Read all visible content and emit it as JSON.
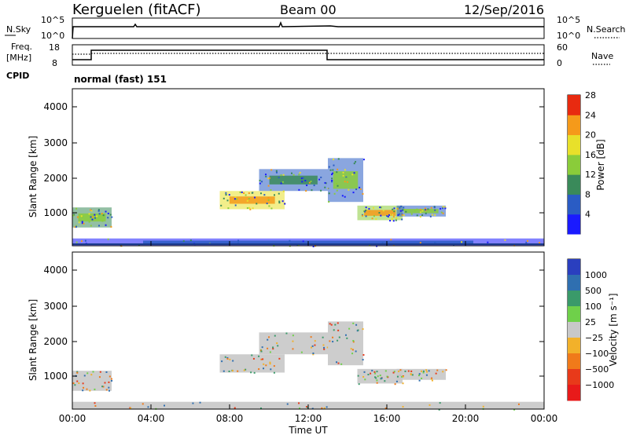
{
  "header": {
    "station": "Kerguelen (fitACF)",
    "beam": "Beam 00",
    "date": "12/Sep/2016"
  },
  "top_panels": {
    "nsky_label": "N.Sky",
    "nsky_ticks": [
      "10^5",
      "10^0"
    ],
    "nsearch_label": "N.Search",
    "nsearch_ticks": [
      "10^5",
      "10^0"
    ],
    "freq_label": "Freq.",
    "freq_unit": "[MHz]",
    "freq_ticks": [
      "18",
      "8"
    ],
    "nave_label": "Nave",
    "nave_ticks": [
      "60",
      "0"
    ],
    "cpid_label": "CPID",
    "cpid_value": "normal (fast) 151"
  },
  "chart_data": [
    {
      "type": "heatmap",
      "panel": "power",
      "ylabel": "Slant Range [km]",
      "yticks": [
        "1000",
        "2000",
        "3000",
        "4000"
      ],
      "ylim": [
        200,
        4500
      ],
      "xlim": [
        "00:00",
        "24:00"
      ],
      "colorbar_label": "Power [dB]",
      "colorbar_ticks": [
        "4",
        "8",
        "12",
        "16",
        "20",
        "24",
        "28"
      ],
      "colors": [
        "#1a1aff",
        "#2a5cc4",
        "#3a8a5a",
        "#8acc3a",
        "#e8e02a",
        "#f59a1a",
        "#e82a10"
      ],
      "regions": [
        {
          "t0": 0.0,
          "t1": 2.0,
          "r0": 700,
          "r1": 1250,
          "level": 16
        },
        {
          "t0": 7.5,
          "t1": 10.8,
          "r0": 1200,
          "r1": 1700,
          "level": 24
        },
        {
          "t0": 9.5,
          "t1": 13.0,
          "r0": 1700,
          "r1": 2300,
          "level": 12
        },
        {
          "t0": 13.0,
          "t1": 14.8,
          "r0": 1400,
          "r1": 2600,
          "level": 14
        },
        {
          "t0": 14.5,
          "t1": 16.8,
          "r0": 900,
          "r1": 1300,
          "level": 22
        },
        {
          "t0": 16.5,
          "t1": 19.0,
          "r0": 1000,
          "r1": 1300,
          "level": 14
        },
        {
          "t0": 0.0,
          "t1": 24.0,
          "r0": 200,
          "r1": 400,
          "level": 6
        }
      ]
    },
    {
      "type": "heatmap",
      "panel": "velocity",
      "xlabel": "Time UT",
      "ylabel": "Slant Range [km]",
      "xticks": [
        "00:00",
        "04:00",
        "08:00",
        "12:00",
        "16:00",
        "20:00",
        "00:00"
      ],
      "yticks": [
        "1000",
        "2000",
        "3000",
        "4000"
      ],
      "ylim": [
        200,
        4500
      ],
      "colorbar_label": "Velocity [m s⁻¹]",
      "colorbar_ticks": [
        "1000",
        "500",
        "100",
        "25",
        "−25",
        "−100",
        "−500",
        "−1000"
      ],
      "colors": [
        "#2a3fbf",
        "#2f6fb0",
        "#3a9a6a",
        "#6fd04a",
        "#c8c8c8",
        "#f2b12a",
        "#f07a1a",
        "#e83a1a",
        "#e81a1a"
      ]
    }
  ]
}
